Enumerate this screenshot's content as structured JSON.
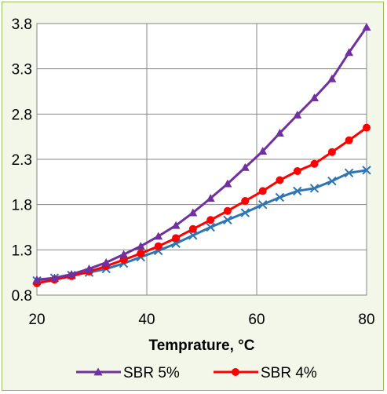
{
  "chart_data": {
    "type": "line",
    "xlabel": "Temprature, °C",
    "ylabel": "",
    "xlim": [
      20,
      80
    ],
    "ylim": [
      0.8,
      3.8
    ],
    "xticks": [
      "20",
      "40",
      "60",
      "80"
    ],
    "yticks": [
      "0.8",
      "1.3",
      "1.8",
      "2.3",
      "2.8",
      "3.3",
      "3.8"
    ],
    "grid": true,
    "legend_position": "bottom",
    "x": [
      20,
      23.2,
      26.3,
      29.5,
      32.6,
      35.8,
      38.9,
      42.1,
      45.3,
      48.4,
      51.6,
      54.7,
      57.9,
      61.1,
      64.2,
      67.4,
      70.5,
      73.7,
      76.8,
      80
    ],
    "series": [
      {
        "name": "SBR 5%",
        "color": "#7030a0",
        "marker": "triangle",
        "values": [
          0.97,
          0.99,
          1.03,
          1.09,
          1.16,
          1.25,
          1.34,
          1.45,
          1.57,
          1.71,
          1.87,
          2.03,
          2.21,
          2.39,
          2.59,
          2.79,
          2.98,
          3.19,
          3.48,
          3.76
        ]
      },
      {
        "name": "SBR 4%",
        "color": "#ff0000",
        "marker": "circle",
        "values": [
          0.93,
          0.97,
          1.01,
          1.06,
          1.12,
          1.19,
          1.26,
          1.34,
          1.43,
          1.53,
          1.63,
          1.73,
          1.84,
          1.95,
          2.07,
          2.17,
          2.25,
          2.38,
          2.51,
          2.65
        ]
      },
      {
        "name": "",
        "color": "#2e75b6",
        "marker": "x",
        "values": [
          0.96,
          0.99,
          1.02,
          1.05,
          1.09,
          1.15,
          1.22,
          1.29,
          1.37,
          1.46,
          1.55,
          1.63,
          1.71,
          1.8,
          1.88,
          1.95,
          1.98,
          2.06,
          2.15,
          2.18
        ]
      }
    ]
  },
  "colors": {
    "background": "#f2f7ea",
    "border": "#9bbb59",
    "plot_area": "#ffffff",
    "grid": "#868686"
  }
}
